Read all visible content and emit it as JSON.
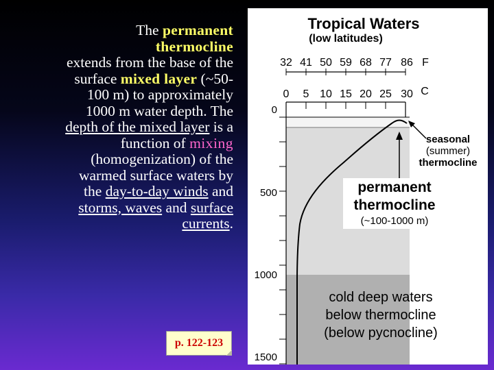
{
  "text": {
    "l1a": "The ",
    "l1b": "permanent",
    "l2": "thermocline",
    "l3": "extends from the base of the",
    "l4a": "surface ",
    "l4b": "mixed layer",
    "l4c": " (~50-",
    "l5": "100 m) to approximately",
    "l6": "1000 m water depth.  The",
    "l7a": "depth of the mixed layer",
    "l7b": " is a",
    "l8a": "function of ",
    "l8b": "mixing",
    "l9": "(homogenization) of the",
    "l10": "warmed surface waters by",
    "l11a": "the ",
    "l11b": "day-to-day winds",
    "l11c": " and",
    "l12a": "storms, waves",
    "l12b": " and ",
    "l12c": "surface",
    "l13a": "currents",
    "l13b": "."
  },
  "page_ref": "p. 122-123",
  "figure": {
    "title": "Tropical Waters",
    "subtitle": "(low latitudes)",
    "f_ticks": [
      "32",
      "41",
      "50",
      "59",
      "68",
      "77",
      "86"
    ],
    "f_unit": "F",
    "c_ticks": [
      "0",
      "5",
      "10",
      "15",
      "20",
      "25",
      "30"
    ],
    "c_unit": "C",
    "depth_ticks": [
      "0",
      "500",
      "1000",
      "1500"
    ],
    "seasonal": [
      "seasonal",
      "(summer)",
      "thermocline"
    ],
    "permanent": [
      "permanent",
      "thermocline",
      "(~100-1000 m)"
    ],
    "cold": [
      "cold deep waters",
      "below thermocline",
      "(below pycnocline)"
    ]
  },
  "colors": {
    "highlight_yellow": "#ffff66",
    "highlight_pink": "#ff66cc",
    "zone_light": "#dcdcdc",
    "zone_dark": "#b0b0b0"
  }
}
